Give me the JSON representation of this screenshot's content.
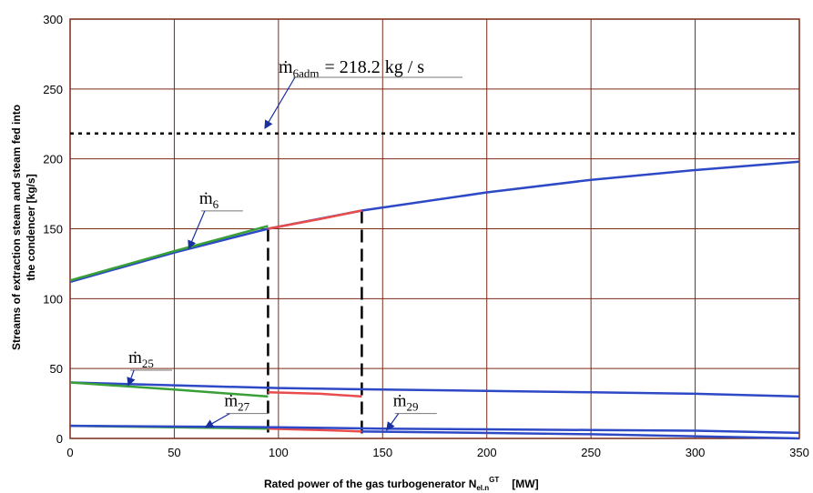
{
  "chart_data": {
    "type": "line",
    "xlabel_text": "Rated power of the gas turbogenerator  N",
    "xlabel_sub": "el.n",
    "xlabel_sup": "GT",
    "xlabel_unit": "[MW]",
    "ylabel_line1": "Streams of extraction steam and steam fed into",
    "ylabel_line2": "the condencer [kg/s]",
    "xlim": [
      0,
      350
    ],
    "ylim": [
      0,
      300
    ],
    "x_ticks": [
      0,
      50,
      100,
      150,
      200,
      250,
      300,
      350
    ],
    "y_ticks": [
      0,
      50,
      100,
      150,
      200,
      250,
      300
    ],
    "x_tick_labels": [
      "0",
      "50",
      "100",
      "150",
      "200",
      "250",
      "300",
      "350"
    ],
    "y_tick_labels": [
      "0",
      "50",
      "100",
      "150",
      "200",
      "250",
      "300"
    ],
    "grid": true,
    "reference_line": {
      "y": 218.2,
      "style": "dotted",
      "label_symbol": "ṁ",
      "label_sub": "6adm",
      "label_value": "= 218.2 kg / s"
    },
    "vertical_markers": [
      {
        "x": 95,
        "y_top": 150,
        "style": "dashed"
      },
      {
        "x": 140,
        "y_top": 163,
        "style": "dashed"
      }
    ],
    "series": [
      {
        "id": "m6-blue",
        "color": "#2e49c6",
        "x": [
          0,
          50,
          95,
          140,
          200,
          250,
          300,
          350
        ],
        "y": [
          112,
          133,
          150,
          163,
          176,
          185,
          192,
          198
        ]
      },
      {
        "id": "m6-green",
        "color": "#38a036",
        "x": [
          0,
          50,
          95
        ],
        "y": [
          113,
          134,
          152
        ]
      },
      {
        "id": "m6-red",
        "color": "#e84c4c",
        "x": [
          95,
          120,
          140
        ],
        "y": [
          150,
          157,
          163
        ]
      },
      {
        "id": "m25-blue",
        "color": "#2e49c6",
        "x": [
          0,
          50,
          100,
          150,
          200,
          250,
          300,
          350
        ],
        "y": [
          40,
          38,
          36,
          35,
          34,
          33,
          32,
          30
        ]
      },
      {
        "id": "m25-green",
        "color": "#38a036",
        "x": [
          0,
          50,
          95
        ],
        "y": [
          40,
          35,
          30
        ]
      },
      {
        "id": "m25-red",
        "color": "#e84c4c",
        "x": [
          95,
          120,
          140
        ],
        "y": [
          33,
          32,
          30
        ]
      },
      {
        "id": "m27-green",
        "color": "#38a036",
        "x": [
          0,
          50,
          95
        ],
        "y": [
          9,
          8,
          7
        ]
      },
      {
        "id": "m27-red",
        "color": "#e84c4c",
        "x": [
          95,
          120,
          140
        ],
        "y": [
          7,
          6,
          5
        ]
      },
      {
        "id": "m29-blue",
        "color": "#2e49c6",
        "x": [
          0,
          100,
          150,
          200,
          250,
          300,
          350
        ],
        "y": [
          9,
          8,
          7,
          6.5,
          6,
          5.5,
          4
        ]
      },
      {
        "id": "m29-blue-lower",
        "color": "#2e49c6",
        "x": [
          140,
          250,
          350
        ],
        "y": [
          5,
          3,
          0
        ]
      }
    ],
    "series_labels": [
      {
        "symbol": "ṁ",
        "sub": "6",
        "x": 62,
        "y": 168,
        "arrow_to": [
          57,
          136
        ]
      },
      {
        "symbol": "ṁ",
        "sub": "25",
        "x": 28,
        "y": 54,
        "arrow_to": [
          28,
          38
        ]
      },
      {
        "symbol": "ṁ",
        "sub": "27",
        "x": 74,
        "y": 23,
        "arrow_to": [
          65,
          8
        ]
      },
      {
        "symbol": "ṁ",
        "sub": "29",
        "x": 155,
        "y": 23,
        "arrow_to": [
          152,
          6
        ]
      }
    ],
    "colors": {
      "grid": "#7b2a18",
      "blue": "#2e49c6",
      "green": "#38a036",
      "red": "#e84c4c"
    }
  }
}
